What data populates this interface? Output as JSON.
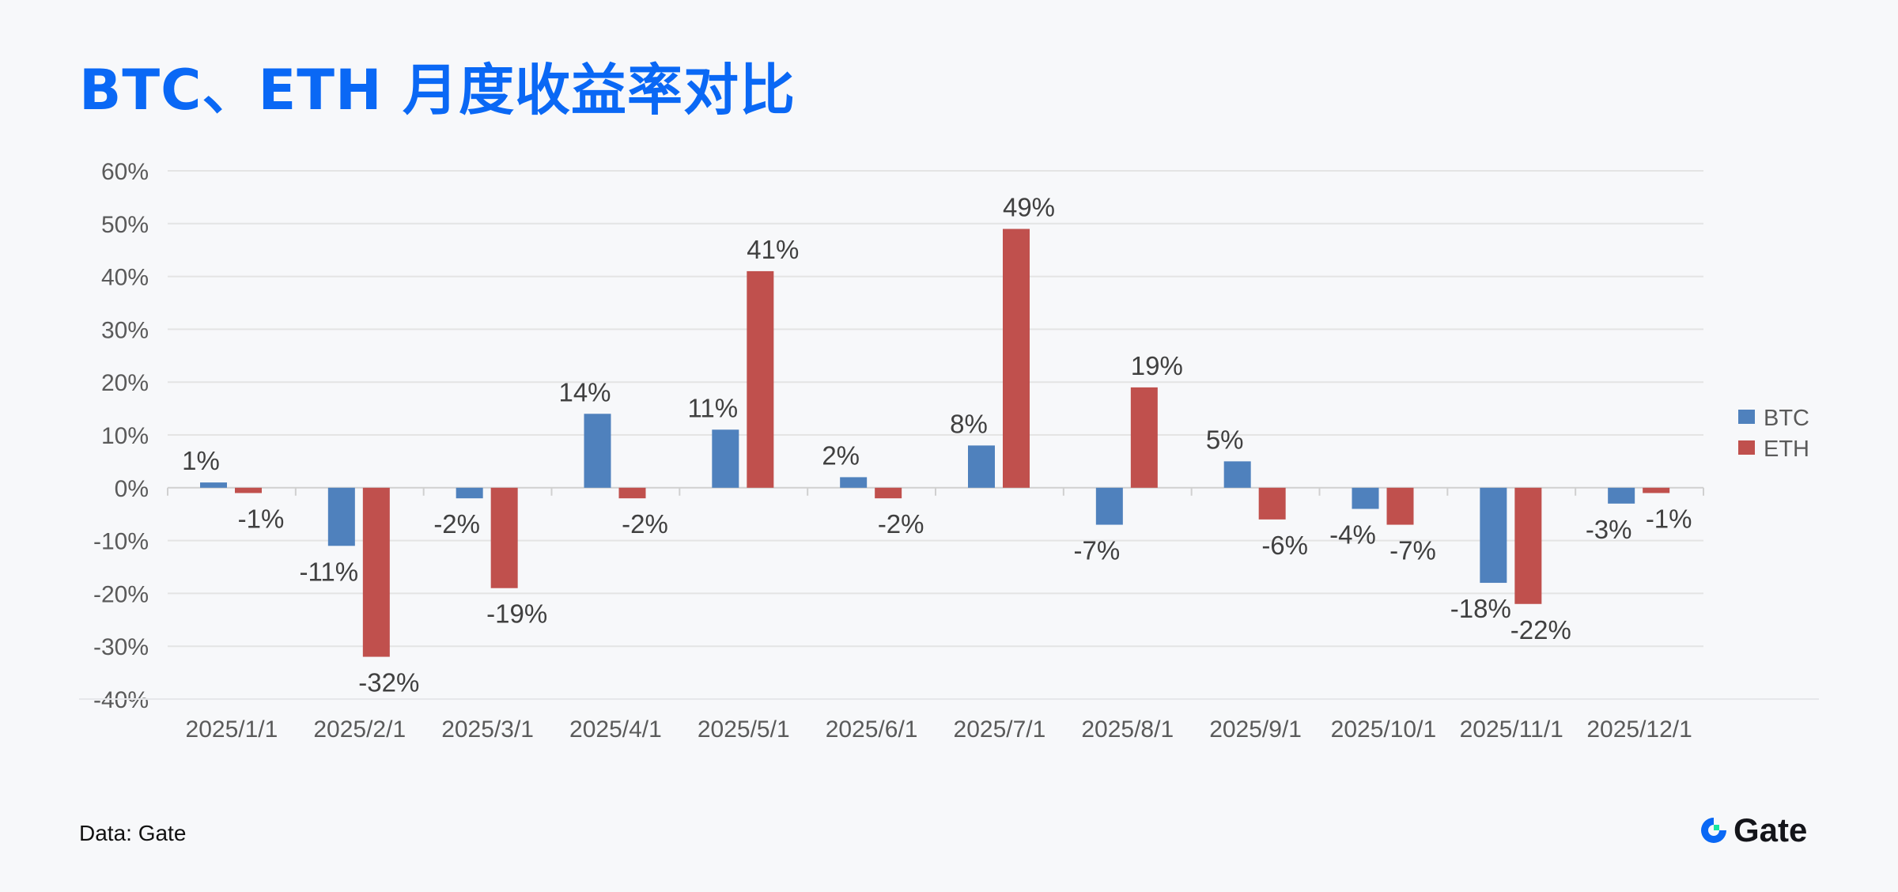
{
  "title": "BTC、ETH 月度收益率对比",
  "source": "Data: Gate",
  "logo_text": "Gate",
  "colors": {
    "title": "#0a68f5",
    "btc": "#4f81bd",
    "eth": "#c0504d"
  },
  "chart_data": {
    "type": "bar",
    "title": "BTC、ETH 月度收益率对比",
    "categories": [
      "2025/1/1",
      "2025/2/1",
      "2025/3/1",
      "2025/4/1",
      "2025/5/1",
      "2025/6/1",
      "2025/7/1",
      "2025/8/1",
      "2025/9/1",
      "2025/10/1",
      "2025/11/1",
      "2025/12/1"
    ],
    "series": [
      {
        "name": "BTC",
        "color": "#4f81bd",
        "values": [
          1,
          -11,
          -2,
          14,
          11,
          2,
          8,
          -7,
          5,
          -4,
          -18,
          -3
        ],
        "labels": [
          "1%",
          "-11%",
          "-2%",
          "14%",
          "11%",
          "2%",
          "8%",
          "-7%",
          "5%",
          "-4%",
          "-18%",
          "-3%"
        ]
      },
      {
        "name": "ETH",
        "color": "#c0504d",
        "values": [
          -1,
          -32,
          -19,
          -2,
          41,
          -2,
          49,
          19,
          -6,
          -7,
          -22,
          -1
        ],
        "labels": [
          "-1%",
          "-32%",
          "-19%",
          "-2%",
          "41%",
          "-2%",
          "49%",
          "19%",
          "-6%",
          "-7%",
          "-22%",
          "-1%"
        ]
      }
    ],
    "ylim": [
      -40,
      60
    ],
    "yticks": [
      -40,
      -30,
      -20,
      -10,
      0,
      10,
      20,
      30,
      40,
      50,
      60
    ],
    "ytick_labels": [
      "-40%",
      "-30%",
      "-20%",
      "-10%",
      "0%",
      "10%",
      "20%",
      "30%",
      "40%",
      "50%",
      "60%"
    ],
    "xlabel": "",
    "ylabel": "",
    "grid": true,
    "legend": "right"
  }
}
